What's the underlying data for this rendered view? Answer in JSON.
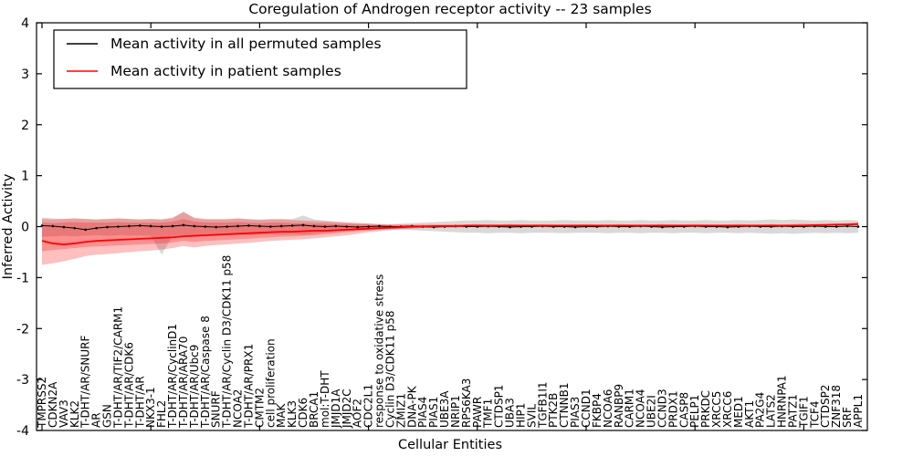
{
  "chart_data": {
    "type": "line",
    "title": "Coregulation of Androgen receptor activity -- 23 samples",
    "xlabel": "Cellular Entities",
    "ylabel": "Inferred Activity",
    "ylim": [
      -4,
      4
    ],
    "yticks": [
      4,
      3,
      2,
      1,
      0,
      -1,
      -2,
      -3,
      -4
    ],
    "grid": false,
    "legend_position": "upper left",
    "legend": [
      {
        "label": "Mean activity in all permuted samples",
        "color": "#000000"
      },
      {
        "label": "Mean activity in patient samples",
        "color": "#ff0000"
      }
    ],
    "categories": [
      "TMPRSS2",
      "CDKN2A",
      "VAV3",
      "KLK2",
      "T-DHT/AR/SNURF",
      "AR",
      "GSN",
      "T-DHT/AR/TIF2/CARM1",
      "T-DHT/AR/CDK6",
      "T-DHT/AR",
      "NKX3-1",
      "FHL2",
      "T-DHT/AR/CyclinD1",
      "T-DHT/AR/ARA70",
      "T-DHT/AR/Ubc9",
      "T-DHT/AR/Caspase 8",
      "SNURF",
      "T-DHT/AR/Cyclin D3/CDK11 p58",
      "NCOA2",
      "T-DHT/AR/PRX1",
      "CMTM2",
      "cell proliferation",
      "MAK",
      "KLK3",
      "CDK6",
      "BRCA1",
      "mol:T-DHT",
      "JMJD1A",
      "JMJD2C",
      "AOF2",
      "CDC2L1",
      "response to oxidative stress",
      "Cyclin D3/CDK11 p58",
      "ZMIZ1",
      "DNA-PK",
      "PIAS4",
      "PIAS1",
      "UBE3A",
      "NRIP1",
      "RPS6KA3",
      "PAWR",
      "TMF1",
      "CTDSP1",
      "UBA3",
      "HIP1",
      "SVIL",
      "TGFB1I1",
      "PTK2B",
      "CTNNB1",
      "PIAS3",
      "CCND1",
      "FKBP4",
      "NCOA6",
      "RANBP9",
      "CARM1",
      "NCOA4",
      "UBE2I",
      "CCND3",
      "PRDX1",
      "CASP8",
      "PELP1",
      "PRKDC",
      "XRCC5",
      "XRCC6",
      "MED1",
      "AKT1",
      "PA2G4",
      "LATS2",
      "HNRNPA1",
      "PATZ1",
      "TGIF1",
      "TCF4",
      "CTDSP2",
      "ZNF318",
      "SRF",
      "APPL1"
    ],
    "series": [
      {
        "name": "Mean activity in all permuted samples",
        "color": "#000000",
        "marker": "dot",
        "line_width": 1,
        "values": [
          0.02,
          0.01,
          -0.01,
          -0.03,
          -0.06,
          -0.03,
          -0.01,
          0,
          0.01,
          0.02,
          0.01,
          0,
          0.01,
          0.03,
          0.01,
          0,
          -0.01,
          0,
          0.01,
          0.02,
          0.01,
          0,
          0.01,
          0.02,
          0.03,
          0.01,
          0,
          0.01,
          0,
          -0.01,
          0,
          0.01,
          0,
          0,
          0.01,
          0,
          -0.01,
          0,
          0.01,
          0,
          0,
          0.01,
          0,
          -0.01,
          0,
          0,
          0.01,
          0,
          0,
          -0.01,
          0,
          0,
          0.01,
          0,
          0,
          0.01,
          0,
          -0.01,
          0,
          0,
          0.01,
          0,
          0,
          -0.01,
          0,
          0.01,
          0,
          0,
          0.01,
          0,
          0,
          0.01,
          0,
          0,
          0.01,
          0
        ]
      },
      {
        "name": "Mean activity in patient samples",
        "color": "#ff0000",
        "marker": "none",
        "line_width": 1.8,
        "values": [
          -0.28,
          -0.33,
          -0.35,
          -0.33,
          -0.3,
          -0.28,
          -0.27,
          -0.26,
          -0.25,
          -0.24,
          -0.23,
          -0.22,
          -0.21,
          -0.19,
          -0.18,
          -0.17,
          -0.16,
          -0.15,
          -0.14,
          -0.13,
          -0.12,
          -0.11,
          -0.1,
          -0.1,
          -0.09,
          -0.08,
          -0.08,
          -0.07,
          -0.06,
          -0.05,
          -0.04,
          -0.03,
          -0.02,
          -0.01,
          0,
          0,
          0.01,
          0.01,
          0.01,
          0.02,
          0.02,
          0.02,
          0.02,
          0.02,
          0.02,
          0.02,
          0.02,
          0.02,
          0.02,
          0.02,
          0.02,
          0.02,
          0.02,
          0.02,
          0.02,
          0.02,
          0.02,
          0.02,
          0.02,
          0.02,
          0.02,
          0.02,
          0.02,
          0.02,
          0.02,
          0.02,
          0.02,
          0.02,
          0.02,
          0.02,
          0.02,
          0.03,
          0.03,
          0.04,
          0.04,
          0.05
        ]
      }
    ],
    "bands": [
      {
        "name": "permuted-range",
        "color": "#000000",
        "opacity": 0.15,
        "upper": [
          0.18,
          0.16,
          0.15,
          0.16,
          0.15,
          0.14,
          0.15,
          0.16,
          0.15,
          0.14,
          0.15,
          0.14,
          0.16,
          0.3,
          0.16,
          0.14,
          0.15,
          0.14,
          0.16,
          0.15,
          0.14,
          0.15,
          0.14,
          0.15,
          0.22,
          0.14,
          0.12,
          0.1,
          0.08,
          0.07,
          0.06,
          0.05,
          0.05,
          0.06,
          0.07,
          0.08,
          0.09,
          0.1,
          0.11,
          0.12,
          0.12,
          0.13,
          0.12,
          0.12,
          0.13,
          0.12,
          0.12,
          0.12,
          0.13,
          0.12,
          0.12,
          0.12,
          0.13,
          0.12,
          0.12,
          0.13,
          0.12,
          0.12,
          0.13,
          0.12,
          0.12,
          0.13,
          0.12,
          0.12,
          0.13,
          0.12,
          0.13,
          0.14,
          0.13,
          0.14,
          0.13,
          0.12,
          0.13,
          0.12,
          0.13,
          0.12
        ],
        "lower": [
          -0.2,
          -0.19,
          -0.18,
          -0.19,
          -0.18,
          -0.17,
          -0.18,
          -0.17,
          -0.18,
          -0.17,
          -0.18,
          -0.55,
          -0.18,
          -0.17,
          -0.18,
          -0.17,
          -0.16,
          -0.17,
          -0.16,
          -0.17,
          -0.16,
          -0.15,
          -0.16,
          -0.15,
          -0.16,
          -0.14,
          -0.12,
          -0.1,
          -0.08,
          -0.07,
          -0.06,
          -0.05,
          -0.05,
          -0.06,
          -0.07,
          -0.08,
          -0.09,
          -0.1,
          -0.11,
          -0.12,
          -0.12,
          -0.13,
          -0.12,
          -0.12,
          -0.13,
          -0.12,
          -0.12,
          -0.12,
          -0.13,
          -0.12,
          -0.12,
          -0.12,
          -0.13,
          -0.12,
          -0.12,
          -0.13,
          -0.12,
          -0.12,
          -0.13,
          -0.12,
          -0.12,
          -0.13,
          -0.12,
          -0.12,
          -0.13,
          -0.12,
          -0.13,
          -0.14,
          -0.13,
          -0.14,
          -0.13,
          -0.12,
          -0.13,
          -0.12,
          -0.13,
          -0.12
        ]
      },
      {
        "name": "patient-outer-range",
        "color": "#ff0000",
        "opacity": 0.25,
        "upper": [
          0.15,
          0.14,
          0.15,
          0.16,
          0.15,
          0.14,
          0.15,
          0.16,
          0.15,
          0.14,
          0.15,
          0.14,
          0.18,
          0.28,
          0.18,
          0.15,
          0.14,
          0.15,
          0.16,
          0.14,
          0.13,
          0.14,
          0.15,
          0.13,
          0.12,
          0.11,
          0.1,
          0.09,
          0.08,
          0.07,
          0.06,
          0.05,
          0.04,
          0.04,
          0.04,
          0.04,
          0.04,
          0.04,
          0.04,
          0.04,
          0.05,
          0.04,
          0.04,
          0.05,
          0.04,
          0.04,
          0.05,
          0.04,
          0.04,
          0.04,
          0.05,
          0.04,
          0.04,
          0.05,
          0.04,
          0.04,
          0.04,
          0.05,
          0.04,
          0.04,
          0.05,
          0.04,
          0.04,
          0.04,
          0.05,
          0.04,
          0.04,
          0.05,
          0.04,
          0.05,
          0.06,
          0.05,
          0.06,
          0.06,
          0.07,
          0.08
        ],
        "lower": [
          -0.75,
          -0.72,
          -0.68,
          -0.63,
          -0.58,
          -0.55,
          -0.54,
          -0.52,
          -0.5,
          -0.48,
          -0.47,
          -0.45,
          -0.42,
          -0.38,
          -0.41,
          -0.38,
          -0.36,
          -0.35,
          -0.33,
          -0.32,
          -0.3,
          -0.28,
          -0.27,
          -0.26,
          -0.25,
          -0.23,
          -0.21,
          -0.19,
          -0.17,
          -0.14,
          -0.11,
          -0.09,
          -0.07,
          -0.05,
          -0.04,
          -0.03,
          -0.02,
          -0.02,
          -0.02,
          -0.01,
          -0.01,
          -0.02,
          -0.01,
          -0.01,
          -0.02,
          -0.01,
          -0.01,
          -0.02,
          -0.01,
          -0.01,
          -0.01,
          -0.02,
          -0.01,
          -0.01,
          -0.02,
          -0.01,
          -0.01,
          -0.01,
          -0.02,
          -0.01,
          -0.01,
          -0.02,
          -0.01,
          -0.01,
          -0.02,
          -0.01,
          -0.01,
          -0.02,
          -0.01,
          -0.01,
          0,
          0,
          0,
          0.01,
          0.01,
          0.02
        ]
      },
      {
        "name": "patient-inner-range",
        "color": "#ff0000",
        "opacity": 0.25,
        "upper": [
          0.08,
          0.07,
          0.08,
          0.09,
          0.08,
          0.08,
          0.08,
          0.09,
          0.08,
          0.08,
          0.08,
          0.08,
          0.1,
          0.15,
          0.1,
          0.08,
          0.08,
          0.08,
          0.09,
          0.08,
          0.07,
          0.08,
          0.08,
          0.07,
          0.07,
          0.06,
          0.06,
          0.05,
          0.05,
          0.04,
          0.04,
          0.03,
          0.03,
          0.03,
          0.03,
          0.03,
          0.03,
          0.03,
          0.03,
          0.03,
          0.03,
          0.03,
          0.03,
          0.03,
          0.03,
          0.03,
          0.03,
          0.03,
          0.03,
          0.03,
          0.03,
          0.03,
          0.03,
          0.03,
          0.03,
          0.03,
          0.03,
          0.03,
          0.03,
          0.03,
          0.03,
          0.03,
          0.03,
          0.03,
          0.03,
          0.03,
          0.03,
          0.04,
          0.03,
          0.04,
          0.04,
          0.04,
          0.05,
          0.05,
          0.06,
          0.06
        ],
        "lower": [
          -0.48,
          -0.46,
          -0.44,
          -0.42,
          -0.4,
          -0.39,
          -0.38,
          -0.37,
          -0.36,
          -0.35,
          -0.34,
          -0.33,
          -0.31,
          -0.28,
          -0.3,
          -0.28,
          -0.27,
          -0.26,
          -0.25,
          -0.24,
          -0.22,
          -0.21,
          -0.2,
          -0.19,
          -0.18,
          -0.17,
          -0.15,
          -0.13,
          -0.11,
          -0.09,
          -0.08,
          -0.06,
          -0.05,
          -0.04,
          -0.03,
          -0.02,
          -0.01,
          -0.01,
          -0.01,
          0,
          0,
          0,
          0,
          0,
          0,
          0,
          0,
          0,
          0,
          0,
          0,
          0,
          0,
          0,
          0,
          0,
          0,
          0,
          0,
          0,
          0,
          0,
          0,
          0,
          0,
          0,
          0,
          0.01,
          0,
          0.01,
          0.01,
          0.01,
          0.02,
          0.02,
          0.03,
          0.03
        ]
      }
    ]
  }
}
